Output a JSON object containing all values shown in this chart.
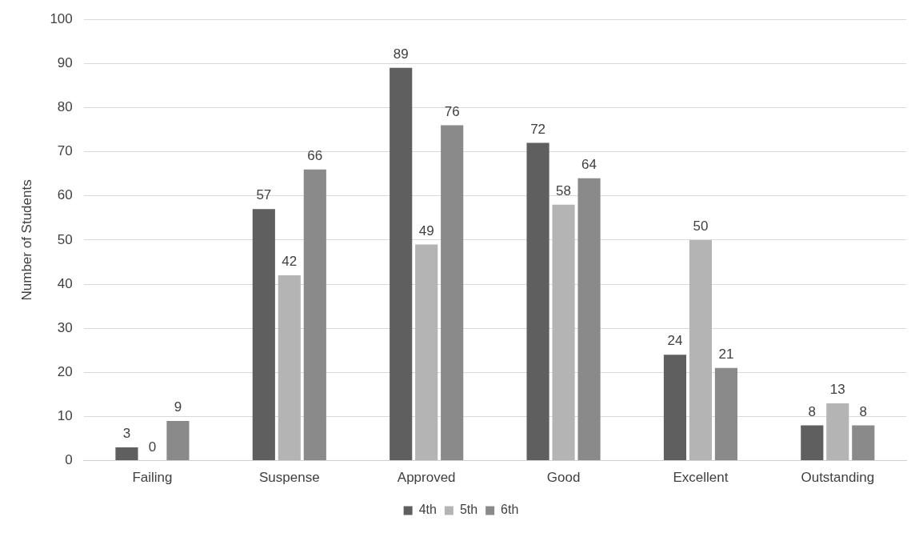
{
  "chart_data": {
    "type": "bar",
    "ylabel": "Number of Students",
    "categories": [
      "Failing",
      "Suspense",
      "Approved",
      "Good",
      "Excellent",
      "Outstanding"
    ],
    "series": [
      {
        "name": "4th",
        "color": "#5f5f5f",
        "values": [
          3,
          57,
          89,
          72,
          24,
          8
        ]
      },
      {
        "name": "5th",
        "color": "#b4b4b4",
        "values": [
          0,
          42,
          49,
          58,
          50,
          13
        ]
      },
      {
        "name": "6th",
        "color": "#8a8a8a",
        "values": [
          9,
          66,
          76,
          64,
          21,
          8
        ]
      }
    ],
    "ylim": [
      0,
      100
    ],
    "yticks": [
      0,
      10,
      20,
      30,
      40,
      50,
      60,
      70,
      80,
      90,
      100
    ],
    "grid": "y",
    "legend": "bottom",
    "data_labels": true
  }
}
